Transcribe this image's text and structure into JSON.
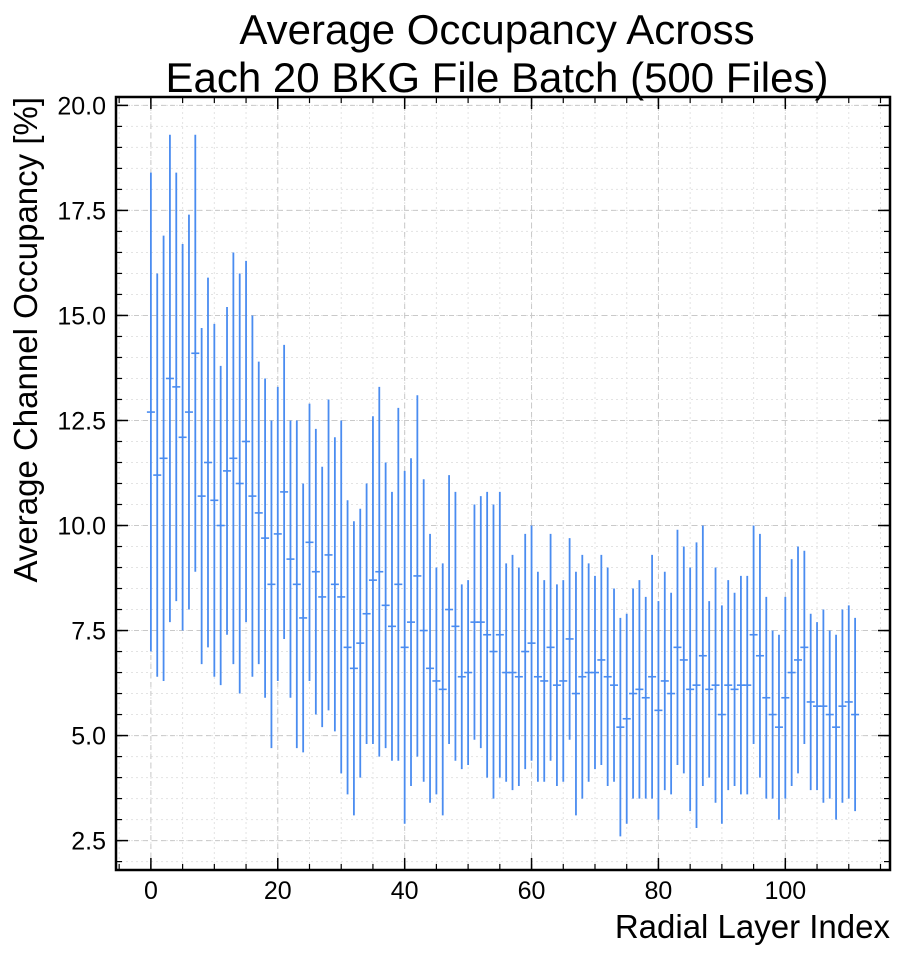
{
  "chart_data": {
    "type": "errorbar",
    "title": "Average Occupancy Across\nEach 20 BKG File Batch (500 Files)",
    "xlabel": "Radial Layer Index",
    "ylabel": "Average Channel Occupancy [%]",
    "xlim": [
      -5.5,
      116.5
    ],
    "ylim": [
      1.8,
      20.2
    ],
    "xticks": [
      0,
      20,
      40,
      60,
      80,
      100
    ],
    "xtick_labels": [
      "0",
      "20",
      "40",
      "60",
      "80",
      "100"
    ],
    "yticks": [
      2.5,
      5.0,
      7.5,
      10.0,
      12.5,
      15.0,
      17.5,
      20.0
    ],
    "ytick_labels": [
      "2.5",
      "5.0",
      "7.5",
      "10.0",
      "12.5",
      "15.0",
      "17.5",
      "20.0"
    ],
    "grid": true,
    "series_color": "#4a8cf0",
    "x": [
      0,
      1,
      2,
      3,
      4,
      5,
      6,
      7,
      8,
      9,
      10,
      11,
      12,
      13,
      14,
      15,
      16,
      17,
      18,
      19,
      20,
      21,
      22,
      23,
      24,
      25,
      26,
      27,
      28,
      29,
      30,
      31,
      32,
      33,
      34,
      35,
      36,
      37,
      38,
      39,
      40,
      41,
      42,
      43,
      44,
      45,
      46,
      47,
      48,
      49,
      50,
      51,
      52,
      53,
      54,
      55,
      56,
      57,
      58,
      59,
      60,
      61,
      62,
      63,
      64,
      65,
      66,
      67,
      68,
      69,
      70,
      71,
      72,
      73,
      74,
      75,
      76,
      77,
      78,
      79,
      80,
      81,
      82,
      83,
      84,
      85,
      86,
      87,
      88,
      89,
      90,
      91,
      92,
      93,
      94,
      95,
      96,
      97,
      98,
      99,
      100,
      101,
      102,
      103,
      104,
      105,
      106,
      107,
      108,
      109,
      110,
      111
    ],
    "y": [
      12.7,
      11.2,
      11.6,
      13.5,
      13.3,
      12.1,
      12.7,
      14.1,
      10.7,
      11.5,
      10.6,
      10.0,
      11.3,
      11.6,
      11.0,
      12.0,
      10.7,
      10.3,
      9.7,
      8.6,
      9.8,
      10.8,
      9.2,
      8.6,
      7.8,
      9.6,
      8.9,
      8.3,
      9.3,
      8.6,
      8.3,
      7.1,
      6.6,
      7.2,
      7.9,
      8.7,
      8.9,
      8.1,
      7.6,
      8.6,
      7.1,
      7.7,
      8.8,
      7.5,
      6.6,
      6.3,
      6.1,
      8.0,
      7.6,
      6.4,
      6.5,
      7.7,
      7.7,
      7.4,
      7.0,
      7.4,
      6.5,
      6.5,
      6.4,
      7.0,
      7.2,
      6.4,
      6.3,
      7.1,
      6.2,
      6.3,
      7.3,
      6.0,
      6.4,
      6.5,
      6.5,
      6.8,
      6.4,
      6.2,
      5.2,
      5.4,
      6.0,
      6.1,
      5.9,
      6.4,
      5.6,
      6.3,
      6.0,
      7.1,
      6.8,
      6.1,
      6.2,
      6.9,
      6.1,
      6.2,
      5.5,
      6.2,
      6.1,
      6.2,
      6.2,
      7.4,
      6.9,
      5.9,
      5.5,
      5.2,
      5.9,
      6.5,
      6.8,
      7.1,
      5.8,
      5.7,
      5.7,
      5.5,
      5.2,
      5.7,
      5.8,
      5.5
    ],
    "yerr": [
      5.7,
      4.8,
      5.3,
      5.8,
      5.1,
      4.6,
      4.7,
      5.2,
      4.0,
      4.4,
      4.2,
      3.8,
      3.9,
      4.9,
      5.0,
      4.3,
      4.3,
      3.6,
      3.8,
      3.9,
      3.5,
      3.5,
      3.3,
      3.9,
      3.2,
      3.3,
      3.4,
      3.1,
      3.7,
      3.5,
      4.2,
      3.5,
      3.5,
      3.2,
      3.1,
      3.9,
      4.4,
      3.4,
      3.2,
      4.2,
      4.2,
      3.9,
      4.3,
      3.6,
      3.2,
      2.7,
      3.0,
      3.2,
      3.2,
      2.2,
      2.2,
      2.8,
      3.0,
      3.4,
      3.5,
      3.4,
      2.6,
      2.8,
      2.6,
      2.8,
      2.8,
      2.5,
      2.4,
      2.7,
      2.4,
      2.4,
      2.4,
      2.9,
      2.9,
      2.6,
      2.3,
      2.5,
      2.6,
      2.3,
      2.6,
      2.5,
      2.5,
      2.6,
      2.4,
      2.9,
      2.6,
      2.6,
      2.4,
      2.8,
      2.7,
      2.9,
      3.4,
      3.1,
      2.1,
      2.8,
      2.6,
      2.5,
      2.3,
      2.6,
      2.6,
      2.6,
      2.9,
      2.4,
      2.0,
      2.2,
      2.4,
      2.7,
      2.7,
      2.3,
      2.1,
      2.0,
      2.3,
      2.0,
      2.2,
      2.3,
      2.3,
      2.3
    ]
  }
}
